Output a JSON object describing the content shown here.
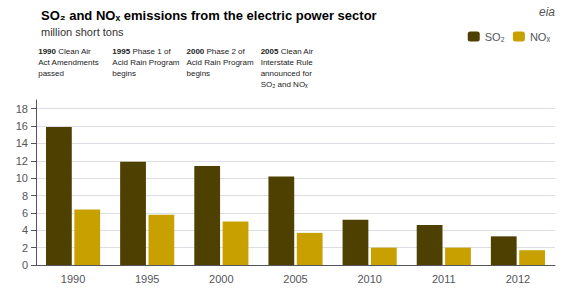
{
  "chart_data": {
    "type": "bar",
    "title": "SO₂ and NOₓ emissions from the electric power sector",
    "subtitle": "million short tons",
    "categories": [
      "1990",
      "1995",
      "2000",
      "2005",
      "2010",
      "2011",
      "2012"
    ],
    "series": [
      {
        "name": "SO₂",
        "color": "#4d4000",
        "values": [
          15.9,
          11.9,
          11.4,
          10.2,
          5.2,
          4.6,
          3.3
        ]
      },
      {
        "name": "NOₓ",
        "color": "#c8a000",
        "values": [
          6.4,
          5.8,
          5.0,
          3.7,
          2.0,
          2.0,
          1.7
        ]
      }
    ],
    "ylim": [
      0,
      19
    ],
    "yticks": [
      0,
      2,
      4,
      6,
      8,
      10,
      12,
      14,
      16,
      18
    ],
    "grid": true,
    "legend": "upper right",
    "annotations": [
      {
        "x": "1990",
        "bold": "1990",
        "lines": [
          "Clean Air",
          "Act Amendments",
          "passed"
        ]
      },
      {
        "x": "1995",
        "bold": "1995",
        "lines": [
          "Phase 1 of",
          "Acid Rain Program",
          "begins"
        ]
      },
      {
        "x": "2000",
        "bold": "2000",
        "lines": [
          "Phase 2 of",
          "Acid Rain Program",
          "begins"
        ]
      },
      {
        "x": "2005",
        "bold": "2005",
        "lines": [
          "Clean Air",
          "Interstate Rule",
          "announced for",
          "SO₂ and NOₓ"
        ]
      },
      {
        "lines": [
          "eia"
        ]
      }
    ]
  }
}
